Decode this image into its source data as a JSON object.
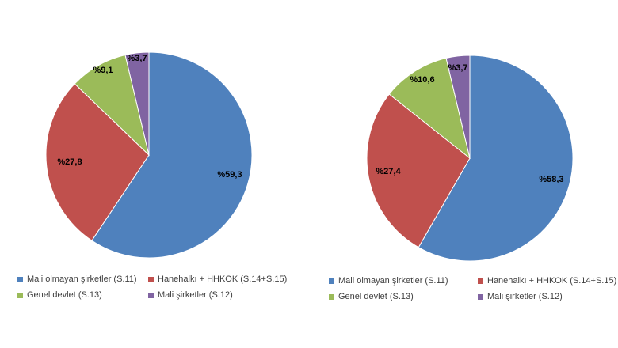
{
  "chart_data": [
    {
      "type": "pie",
      "categories": [
        "Mali olmayan şirketler (S.11)",
        "Hanehalkı + HHKOK (S.14+S.15)",
        "Genel devlet (S.13)",
        "Mali şirketler (S.12)"
      ],
      "values": [
        59.3,
        27.8,
        9.1,
        3.7
      ],
      "labels": [
        "%59,3",
        "%27,8",
        "%9,1",
        "%3,7"
      ],
      "colors": [
        "#4f81bd",
        "#c0504d",
        "#9bbb59",
        "#8064a2"
      ],
      "legend_position": "bottom"
    },
    {
      "type": "pie",
      "categories": [
        "Mali olmayan şirketler (S.11)",
        "Hanehalkı + HHKOK (S.14+S.15)",
        "Genel devlet (S.13)",
        "Mali şirketler (S.12)"
      ],
      "values": [
        58.3,
        27.4,
        10.6,
        3.7
      ],
      "labels": [
        "%58,3",
        "%27,4",
        "%10,6",
        "%3,7"
      ],
      "colors": [
        "#4f81bd",
        "#c0504d",
        "#9bbb59",
        "#8064a2"
      ],
      "legend_position": "bottom"
    }
  ]
}
